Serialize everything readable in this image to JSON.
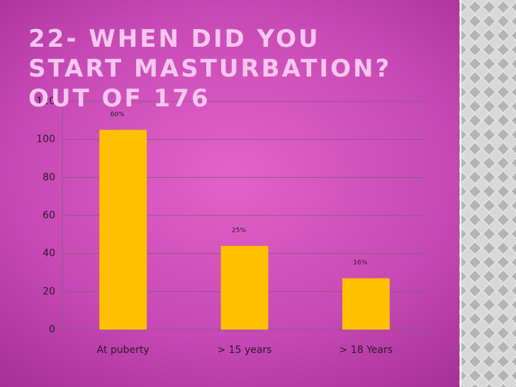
{
  "chart_data": {
    "type": "bar",
    "title": "22- WHEN DID YOU START MASTURBATION? OUT OF 176",
    "categories": [
      "At puberty",
      "> 15 years",
      "> 18 Years"
    ],
    "values": [
      105,
      44,
      27
    ],
    "annotations": [
      "60%",
      "25%",
      "16%"
    ],
    "color": "#ffc000",
    "ylim": [
      0,
      120
    ],
    "yticks": [
      0,
      20,
      40,
      60,
      80,
      100,
      120
    ],
    "grid": true
  }
}
